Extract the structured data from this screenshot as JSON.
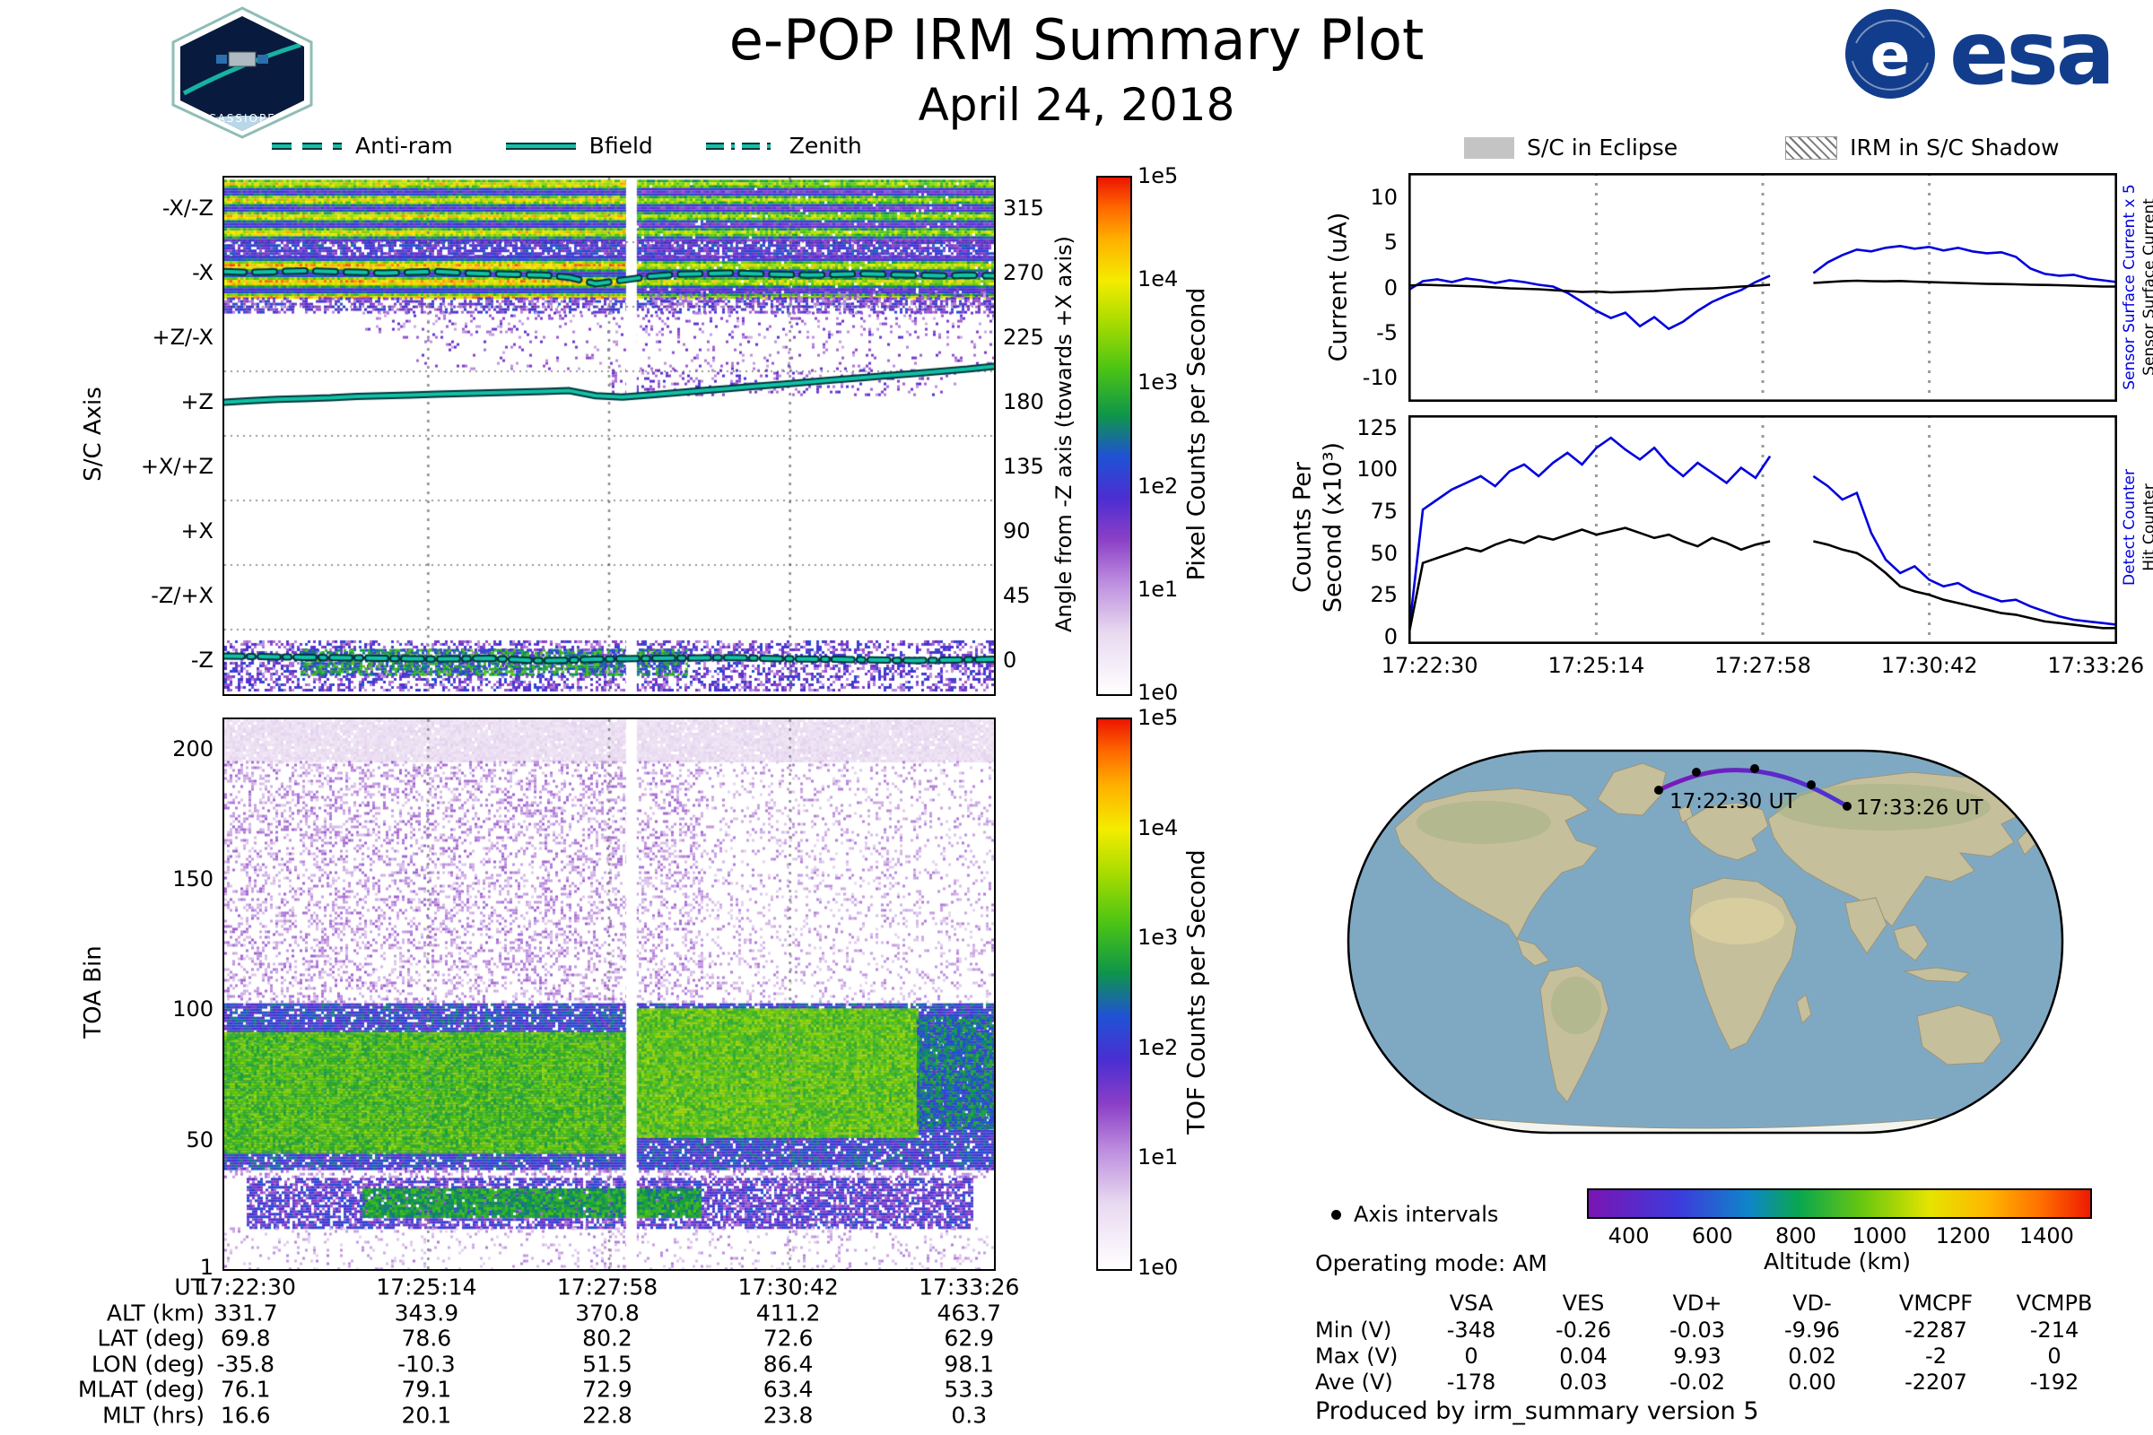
{
  "page": {
    "title": "e-POP IRM Summary Plot",
    "date": "April 24, 2018",
    "operating_mode": "Operating mode: AM",
    "produced_by": "Produced by irm_summary version 5"
  },
  "logos": {
    "esa_label": "esa",
    "cassiope_label": "CASSIOPE"
  },
  "legends": {
    "left": [
      {
        "label": "Anti-ram",
        "style": "dashed"
      },
      {
        "label": "Bfield",
        "style": "solid"
      },
      {
        "label": "Zenith",
        "style": "dashdot"
      }
    ],
    "eclipse": "S/C in Eclipse",
    "shadow": "IRM in S/C Shadow"
  },
  "colormaps": {
    "counts": [
      [
        0,
        "#ffffff"
      ],
      [
        0.12,
        "#e8d9f0"
      ],
      [
        0.22,
        "#bb8ade"
      ],
      [
        0.3,
        "#8b3fc6"
      ],
      [
        0.38,
        "#4b2ed2"
      ],
      [
        0.46,
        "#1f52d4"
      ],
      [
        0.54,
        "#0e9648"
      ],
      [
        0.63,
        "#4cc414"
      ],
      [
        0.72,
        "#a8dc00"
      ],
      [
        0.8,
        "#f4ec00"
      ],
      [
        0.88,
        "#ffb000"
      ],
      [
        0.94,
        "#ff6a00"
      ],
      [
        1,
        "#ec1500"
      ]
    ],
    "altitude": [
      [
        0,
        "#7a15b4"
      ],
      [
        0.18,
        "#3d3bdc"
      ],
      [
        0.32,
        "#0e86c8"
      ],
      [
        0.42,
        "#0aa64e"
      ],
      [
        0.55,
        "#6cc80e"
      ],
      [
        0.68,
        "#e6e400"
      ],
      [
        0.8,
        "#ffb400"
      ],
      [
        0.9,
        "#ff7000"
      ],
      [
        1,
        "#ee1a00"
      ]
    ],
    "accent_teal": "#10c2a6",
    "series_blue": "#0000dd"
  },
  "ephemeris": {
    "rows": [
      {
        "label": "UT",
        "values": [
          "17:22:30",
          "17:25:14",
          "17:27:58",
          "17:30:42",
          "17:33:26"
        ]
      },
      {
        "label": "ALT (km)",
        "values": [
          "331.7",
          "343.9",
          "370.8",
          "411.2",
          "463.7"
        ]
      },
      {
        "label": "LAT (deg)",
        "values": [
          "69.8",
          "78.6",
          "80.2",
          "72.6",
          "62.9"
        ]
      },
      {
        "label": "LON (deg)",
        "values": [
          "-35.8",
          "-10.3",
          "51.5",
          "86.4",
          "98.1"
        ]
      },
      {
        "label": "MLAT (deg)",
        "values": [
          "76.1",
          "79.1",
          "72.9",
          "63.4",
          "53.3"
        ]
      },
      {
        "label": "MLT (hrs)",
        "values": [
          "16.6",
          "20.1",
          "22.8",
          "23.8",
          "0.3"
        ]
      }
    ]
  },
  "voltages": {
    "columns": [
      "VSA",
      "VES",
      "VD+",
      "VD-",
      "VMCPF",
      "VCMPB"
    ],
    "rows": [
      {
        "label": "Min (V)",
        "values": [
          "-348",
          "-0.26",
          "-0.03",
          "-9.96",
          "-2287",
          "-214"
        ]
      },
      {
        "label": "Max (V)",
        "values": [
          "0",
          "0.04",
          "9.93",
          "0.02",
          "-2",
          "0"
        ]
      },
      {
        "label": "Ave (V)",
        "values": [
          "-178",
          "0.03",
          "-0.02",
          "0.00",
          "-2207",
          "-192"
        ]
      }
    ]
  },
  "map": {
    "start_label": "17:22:30 UT",
    "end_label": "17:33:26 UT",
    "axis_intervals_label": "Axis intervals",
    "track_points": [
      [
        390,
        86
      ],
      [
        432,
        66
      ],
      [
        497,
        62
      ],
      [
        560,
        80
      ],
      [
        600,
        104
      ]
    ],
    "track_colors": [
      "#7d18b6",
      "#4a34d4"
    ],
    "altitude_bar": {
      "label": "Altitude (km)",
      "ticks": [
        400,
        600,
        800,
        1000,
        1200,
        1400
      ],
      "range": [
        300,
        1500
      ]
    }
  },
  "chart_data": [
    {
      "id": "sc-axis-spectrogram",
      "type": "heatmap",
      "ylabel": "S/C Axis",
      "y_categories": [
        "-X/-Z",
        "-X",
        "+Z/-X",
        "+Z",
        "+X/+Z",
        "+X",
        "-Z/+X",
        "-Z"
      ],
      "right_axis": {
        "label": "Angle from -Z axis (towards +X axis)",
        "ticks": [
          315,
          270,
          225,
          180,
          135,
          90,
          45,
          0
        ]
      },
      "colorbar": {
        "label": "Pixel Counts per Second",
        "ticks": [
          "1e5",
          "1e4",
          "1e3",
          "1e2",
          "1e1",
          "1e0"
        ]
      },
      "vlim": [
        -22.5,
        337.5
      ],
      "grid_x": [
        0.265,
        0.5,
        0.735
      ],
      "gap": [
        0.522,
        0.536
      ],
      "separators": [
        22.5,
        67.5,
        112.5,
        157.5,
        202.5,
        247.5,
        292.5
      ],
      "bands": [
        {
          "v0": 293,
          "v1": 336,
          "base": 0.74,
          "var": 0.22,
          "cov": 1.0,
          "x0": 0,
          "x1": 0.522,
          "stripes": true
        },
        {
          "v0": 293,
          "v1": 336,
          "base": 0.66,
          "var": 0.22,
          "cov": 0.98,
          "x0": 0.536,
          "x1": 1,
          "stripes": true
        },
        {
          "v0": 283,
          "v1": 293,
          "base": 0.38,
          "var": 0.22,
          "cov": 0.8,
          "x0": 0,
          "x1": 1
        },
        {
          "v0": 254,
          "v1": 283,
          "base": 0.8,
          "var": 0.2,
          "cov": 1.0,
          "x0": 0,
          "x1": 0.522,
          "stripes": true
        },
        {
          "v0": 254,
          "v1": 283,
          "base": 0.7,
          "var": 0.2,
          "cov": 0.97,
          "x0": 0.536,
          "x1": 1,
          "stripes": true
        },
        {
          "v0": 244,
          "v1": 254,
          "base": 0.34,
          "var": 0.24,
          "cov": 0.55,
          "x0": 0,
          "x1": 1
        },
        {
          "v0": 247,
          "v1": 258,
          "base": 0.3,
          "var": 0.2,
          "cov": 0.3,
          "x0": 0.55,
          "x1": 1
        },
        {
          "v0": 226,
          "v1": 244,
          "base": 0.27,
          "var": 0.2,
          "cov": 0.14,
          "x0": 0.18,
          "x1": 1
        },
        {
          "v0": 204,
          "v1": 224,
          "base": 0.27,
          "var": 0.18,
          "cov": 0.08,
          "x0": 0.25,
          "x1": 1
        },
        {
          "v0": 186,
          "v1": 204,
          "base": 0.3,
          "var": 0.2,
          "cov": 0.2,
          "x0": 0.5,
          "x1": 0.95
        },
        {
          "v0": -19,
          "v1": 15,
          "base": 0.33,
          "var": 0.26,
          "cov": 0.45,
          "x0": 0,
          "x1": 1
        },
        {
          "v0": -8,
          "v1": 9,
          "base": 0.52,
          "var": 0.26,
          "cov": 0.7,
          "x0": 0.1,
          "x1": 0.6
        }
      ],
      "overlays": [
        {
          "name": "Bfield",
          "style": "solid",
          "values": [
            181,
            182,
            183,
            183.5,
            184,
            185,
            185.5,
            186,
            186.5,
            187,
            187.5,
            188,
            188.5,
            189,
            185.5,
            184.5,
            186,
            187.5,
            189,
            190.5,
            192,
            193.5,
            195,
            196.5,
            198,
            199.5,
            201,
            202.5,
            204,
            206
          ]
        },
        {
          "name": "Anti-ram",
          "style": "dashed",
          "values": [
            272,
            271.5,
            272,
            272.5,
            272,
            271.5,
            271,
            271.5,
            272,
            271,
            270.5,
            270,
            269.5,
            268,
            263.5,
            266,
            268.5,
            270,
            270.5,
            271,
            270.5,
            270,
            269.5,
            270,
            270.5,
            270,
            269.5,
            269,
            269.5,
            269
          ]
        },
        {
          "name": "Zenith",
          "style": "dashdot",
          "values": [
            4,
            3.8,
            3.5,
            3.2,
            3,
            2.8,
            2.5,
            2.2,
            2,
            2.2,
            2.5,
            1.5,
            0.8,
            1.2,
            1.8,
            2.2,
            2.4,
            2.6,
            2.8,
            3,
            2.6,
            2.2,
            2,
            1.8,
            1.5,
            1.2,
            1,
            1.2,
            1.5,
            1.8
          ]
        }
      ]
    },
    {
      "id": "toa-spectrogram",
      "type": "heatmap",
      "ylabel": "TOA Bin",
      "yticks": [
        200,
        150,
        100,
        50,
        1
      ],
      "vlim": [
        1,
        212
      ],
      "colorbar": {
        "label": "TOF Counts per Second",
        "ticks": [
          "1e5",
          "1e4",
          "1e3",
          "1e2",
          "1e1",
          "1e0"
        ]
      },
      "grid_x": [
        0.265,
        0.5,
        0.735
      ],
      "gap": [
        0.522,
        0.536
      ],
      "bands": [
        {
          "v0": 196,
          "v1": 212,
          "base": 0.1,
          "var": 0.06,
          "cov": 0.95,
          "x0": 0,
          "x1": 1
        },
        {
          "v0": 103,
          "v1": 196,
          "base": 0.2,
          "var": 0.14,
          "cov": 0.3,
          "x0": 0,
          "x1": 0.62
        },
        {
          "v0": 103,
          "v1": 196,
          "base": 0.18,
          "var": 0.12,
          "cov": 0.16,
          "x0": 0.62,
          "x1": 1
        },
        {
          "v0": 40,
          "v1": 103,
          "base": 0.42,
          "var": 0.2,
          "cov": 0.9,
          "x0": 0,
          "x1": 1
        },
        {
          "v0": 46,
          "v1": 92,
          "base": 0.63,
          "var": 0.14,
          "cov": 1.0,
          "x0": 0,
          "x1": 0.522
        },
        {
          "v0": 52,
          "v1": 101,
          "base": 0.65,
          "var": 0.14,
          "cov": 1.0,
          "x0": 0.536,
          "x1": 0.9
        },
        {
          "v0": 55,
          "v1": 98,
          "base": 0.5,
          "var": 0.18,
          "cov": 0.85,
          "x0": 0.9,
          "x1": 1
        },
        {
          "v0": 36,
          "v1": 40,
          "base": 0.22,
          "var": 0.14,
          "cov": 0.3,
          "x0": 0,
          "x1": 1
        },
        {
          "v0": 17,
          "v1": 36,
          "base": 0.36,
          "var": 0.22,
          "cov": 0.75,
          "x0": 0.03,
          "x1": 0.97
        },
        {
          "v0": 21,
          "v1": 32,
          "base": 0.56,
          "var": 0.14,
          "cov": 0.92,
          "x0": 0.18,
          "x1": 0.62
        },
        {
          "v0": 1,
          "v1": 17,
          "base": 0.18,
          "var": 0.12,
          "cov": 0.12,
          "x0": 0,
          "x1": 1
        }
      ]
    },
    {
      "id": "current-plot",
      "type": "line",
      "ylabel": "Current (uA)",
      "ylim": [
        -12.7,
        12.7
      ],
      "yticks": [
        10,
        5,
        0,
        -5,
        -10
      ],
      "grid_x": [
        0.265,
        0.5,
        0.735
      ],
      "right_labels": [
        {
          "text": "Sensor Surface Current x 5",
          "color": "#0000dd"
        },
        {
          "text": "Sensor Surface Current",
          "color": "#000000"
        }
      ],
      "series": [
        {
          "name": "Sensor Surface Current x 5",
          "color": "#0000dd",
          "y": [
            -0.3,
            0.7,
            0.9,
            0.6,
            1.0,
            0.8,
            0.5,
            0.8,
            0.6,
            0.3,
            0.1,
            -0.6,
            -1.6,
            -2.6,
            -3.4,
            -2.8,
            -4.3,
            -3.3,
            -4.6,
            -3.8,
            -2.6,
            -1.6,
            -0.9,
            -0.3,
            0.6,
            1.3,
            null,
            null,
            1.6,
            2.8,
            3.6,
            4.2,
            4.0,
            4.4,
            4.6,
            4.3,
            4.5,
            4.1,
            4.4,
            4.0,
            3.8,
            3.9,
            3.4,
            2.1,
            1.5,
            1.3,
            1.4,
            1.0,
            0.8,
            0.6
          ]
        },
        {
          "name": "Sensor Surface Current",
          "color": "#000000",
          "y": [
            0.2,
            0.3,
            0.25,
            0.2,
            0.15,
            0.1,
            0.0,
            -0.1,
            -0.15,
            -0.2,
            -0.3,
            -0.4,
            -0.5,
            -0.45,
            -0.55,
            -0.5,
            -0.45,
            -0.4,
            -0.3,
            -0.2,
            -0.15,
            -0.1,
            0.0,
            0.1,
            0.2,
            0.3,
            null,
            null,
            0.5,
            0.6,
            0.7,
            0.75,
            0.7,
            0.68,
            0.72,
            0.65,
            0.6,
            0.55,
            0.5,
            0.45,
            0.4,
            0.38,
            0.35,
            0.3,
            0.28,
            0.25,
            0.2,
            0.15,
            0.1,
            0.1
          ]
        }
      ]
    },
    {
      "id": "counts-plot",
      "type": "line",
      "ylabel_lines": [
        "Counts Per",
        "Second (x10³)"
      ],
      "ylim": [
        -4.5,
        132.5
      ],
      "yticks": [
        125,
        100,
        75,
        50,
        25,
        0
      ],
      "grid_x": [
        0.265,
        0.5,
        0.735
      ],
      "x_ticks": [
        "17:22:30",
        "17:25:14",
        "17:27:58",
        "17:30:42",
        "17:33:26"
      ],
      "right_labels": [
        {
          "text": "Detect Counter",
          "color": "#0000dd"
        },
        {
          "text": "Hit Counter",
          "color": "#000000"
        }
      ],
      "series": [
        {
          "name": "Detect Counter",
          "color": "#0000dd",
          "y": [
            0,
            76,
            82,
            88,
            92,
            96,
            90,
            99,
            103,
            96,
            104,
            110,
            103,
            113,
            119,
            112,
            106,
            113,
            103,
            96,
            104,
            98,
            92,
            101,
            95,
            108,
            null,
            null,
            96,
            90,
            82,
            86,
            62,
            46,
            38,
            42,
            34,
            30,
            32,
            27,
            24,
            21,
            22,
            18,
            15,
            12,
            10,
            9,
            8,
            7
          ]
        },
        {
          "name": "Hit Counter",
          "color": "#000000",
          "y": [
            0,
            44,
            47,
            50,
            53,
            51,
            55,
            58,
            56,
            60,
            58,
            61,
            64,
            61,
            63,
            65,
            62,
            59,
            61,
            57,
            54,
            59,
            56,
            52,
            55,
            57,
            null,
            null,
            57,
            55,
            52,
            50,
            45,
            38,
            30,
            27,
            25,
            22,
            20,
            18,
            16,
            14,
            13,
            11,
            9,
            8,
            7,
            6,
            5,
            5
          ]
        }
      ]
    }
  ]
}
